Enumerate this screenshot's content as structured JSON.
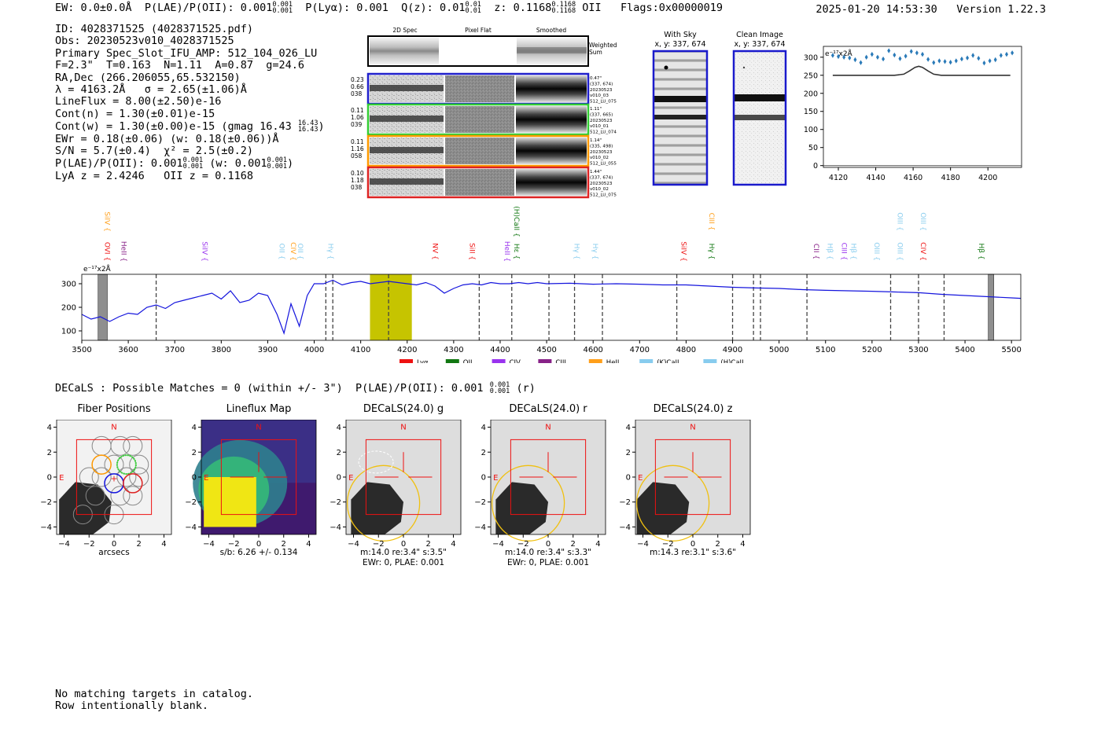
{
  "header": {
    "ew": "EW: 0.0±0.0Å",
    "plae_label": "P(LAE)/P(OII): 0.001",
    "plae_hi": "0.001",
    "plae_lo": "0.001",
    "plya": "P(Lyα): 0.001",
    "qz_label": "Q(z): 0.01",
    "qz_hi": "0.01",
    "qz_lo": "0.01",
    "z_label": "z: 0.1168",
    "z_hi": "0.1168",
    "z_lo": "0.1168",
    "z_line": "OII",
    "flags": "Flags:0x00000019",
    "timestamp": "2025-01-20 14:53:30",
    "version": "Version 1.22.3"
  },
  "info": {
    "id": "ID: 4028371525 (4028371525.pdf)",
    "obs": "Obs: 20230523v010_4028371525",
    "primary": "Primary Spec_Slot_IFU_AMP: 512_104_026_LU",
    "fit": "F=2.3\"  T=0.163  N=1.11  A=0.87  g=24.6",
    "radec": "RA,Dec (266.206055,65.532150)",
    "lambda": "λ = 4163.2Å   σ = 2.65(±1.06)Å",
    "lineflux": "LineFlux = 8.00(±2.50)e-16",
    "cont_n": "Cont(n) = 1.30(±0.01)e-15",
    "cont_w": "Cont(w) = 1.30(±0.00)e-15 (gmag 16.43",
    "cont_w_hi": "16.43",
    "cont_w_lo": "16.43",
    "ewr": "EWr = 0.18(±0.06) (w: 0.18(±0.06))Å",
    "sn": "S/N = 5.7(±0.4)  χ² = 2.5(±0.2)",
    "plae": "P(LAE)/P(OII): 0.001",
    "plae_hi": "0.001",
    "plae_lo": "0.001",
    "plae_w": "(w: 0.001",
    "plae_w_hi": "0.001",
    "plae_w_lo": "0.001",
    "lya_z": "LyA z = 2.4246   OII z = 0.1168"
  },
  "cutouts": {
    "col_2d": "2D Spec",
    "col_flat": "Pixel Flat",
    "col_smooth": "Smoothed",
    "weighted": "Weighted",
    "weighted2": "Sum",
    "rows": [
      {
        "left": [
          "0.23",
          "0.66",
          "038"
        ],
        "right": [
          "0.47\"",
          "(337, 674)",
          "20230523",
          "v010_03",
          "512_LU_075"
        ],
        "color": "#1f1fcc"
      },
      {
        "left": [
          "0.11",
          "1.06",
          "039"
        ],
        "right": [
          "1.11\"",
          "(337, 665)",
          "20230523",
          "v010_01",
          "512_LU_074"
        ],
        "color": "#33cc33"
      },
      {
        "left": [
          "0.11",
          "1.16",
          "058"
        ],
        "right": [
          "1.14\"",
          "(335, 498)",
          "20230523",
          "v010_02",
          "512_LU_055"
        ],
        "color": "#ff9900"
      },
      {
        "left": [
          "0.10",
          "1.18",
          "038"
        ],
        "right": [
          "1.44\"",
          "(337, 674)",
          "20230523",
          "v010_02",
          "512_LU_075"
        ],
        "color": "#dd2222"
      }
    ]
  },
  "sky": {
    "with_sky_title": "With Sky",
    "with_sky_xy": "x, y: 337, 674",
    "clean_title": "Clean Image",
    "clean_xy": "x, y: 337, 674"
  },
  "zoom_chart": {
    "ylabel": "e⁻¹⁷x2Å",
    "xticks": [
      "4120",
      "4140",
      "4160",
      "4180",
      "4200"
    ],
    "yticks": [
      "0",
      "50",
      "100",
      "150",
      "200",
      "250",
      "300"
    ]
  },
  "spectrum": {
    "ylabel": "e⁻¹⁷x2Å",
    "xticks": [
      "3500",
      "3600",
      "3700",
      "3800",
      "3900",
      "4000",
      "4100",
      "4200",
      "4300",
      "4400",
      "4500",
      "4600",
      "4700",
      "4800",
      "4900",
      "5000",
      "5100",
      "5200",
      "5300",
      "5400",
      "5500"
    ],
    "yticks": [
      "100",
      "200",
      "300"
    ],
    "legend": [
      {
        "label": "Lyα",
        "color": "#ee1111"
      },
      {
        "label": "OII",
        "color": "#117711"
      },
      {
        "label": "CIV",
        "color": "#9933ee"
      },
      {
        "label": "CIII",
        "color": "#882288"
      },
      {
        "label": "HeII",
        "color": "#ff9f1a"
      },
      {
        "label": "(K)CaII",
        "color": "#88ccee"
      },
      {
        "label": "(H)CaII",
        "color": "#88ccee"
      }
    ],
    "lines": [
      {
        "label": "SiIV",
        "x": 3545,
        "color": "#ff9f1a",
        "row": 0
      },
      {
        "label": "OVI",
        "x": 3545,
        "color": "#ee1111",
        "row": 1
      },
      {
        "label": "HeII",
        "x": 3580,
        "color": "#882288",
        "row": 1
      },
      {
        "label": "SiIV",
        "x": 3755,
        "color": "#9933ee",
        "row": 1
      },
      {
        "label": "OII",
        "x": 3920,
        "color": "#88ccee",
        "row": 1
      },
      {
        "label": "CIV",
        "x": 3945,
        "color": "#ff9f1a",
        "row": 1
      },
      {
        "label": "OII",
        "x": 3960,
        "color": "#88ccee",
        "row": 1
      },
      {
        "label": "Hγ",
        "x": 4025,
        "color": "#88ccee",
        "row": 1
      },
      {
        "label": "NV",
        "x": 4250,
        "color": "#ee1111",
        "row": 1
      },
      {
        "label": "SiII",
        "x": 4330,
        "color": "#ee1111",
        "row": 1
      },
      {
        "label": "HeII",
        "x": 4405,
        "color": "#9933ee",
        "row": 1
      },
      {
        "label": "(H)CaII",
        "x": 4425,
        "color": "#117711",
        "row": 0
      },
      {
        "label": "Hε",
        "x": 4425,
        "color": "#117711",
        "row": 1
      },
      {
        "label": "Hγ",
        "x": 4555,
        "color": "#88ccee",
        "row": 1
      },
      {
        "label": "Hγ",
        "x": 4595,
        "color": "#88ccee",
        "row": 1
      },
      {
        "label": "SiIV",
        "x": 4785,
        "color": "#ee1111",
        "row": 1
      },
      {
        "label": "CIII",
        "x": 4845,
        "color": "#ff9f1a",
        "row": 0
      },
      {
        "label": "Hγ",
        "x": 4845,
        "color": "#117711",
        "row": 1
      },
      {
        "label": "CII",
        "x": 5070,
        "color": "#882288",
        "row": 1
      },
      {
        "label": "Hβ",
        "x": 5100,
        "color": "#88ccee",
        "row": 1
      },
      {
        "label": "CIII",
        "x": 5130,
        "color": "#9933ee",
        "row": 1
      },
      {
        "label": "Hβ",
        "x": 5150,
        "color": "#88ccee",
        "row": 1
      },
      {
        "label": "OIII",
        "x": 5200,
        "color": "#88ccee",
        "row": 1
      },
      {
        "label": "OIII",
        "x": 5250,
        "color": "#88ccee",
        "row": 0
      },
      {
        "label": "OIII",
        "x": 5250,
        "color": "#88ccee",
        "row": 1
      },
      {
        "label": "CIV",
        "x": 5300,
        "color": "#ee1111",
        "row": 1
      },
      {
        "label": "OIII",
        "x": 5300,
        "color": "#88ccee",
        "row": 0
      },
      {
        "label": "Hβ",
        "x": 5425,
        "color": "#117711",
        "row": 1
      }
    ]
  },
  "decals_line": {
    "text": "DECaLS : Possible Matches = 0 (within +/- 3\")  P(LAE)/P(OII): 0.001",
    "hi": "0.001",
    "lo": "0.001",
    "band": "(r)"
  },
  "panels": [
    {
      "title": "Fiber Positions",
      "cap1": "arcsecs",
      "cap2": ""
    },
    {
      "title": "Lineflux Map",
      "cap1": "s/b: 6.26 +/- 0.134",
      "cap2": ""
    },
    {
      "title": "DECaLS(24.0) g",
      "cap1": "m:14.0  re:3.4\"  s:3.5\"",
      "cap2": "EWr: 0, PLAE: 0.001"
    },
    {
      "title": "DECaLS(24.0) r",
      "cap1": "m:14.0  re:3.4\"  s:3.3\"",
      "cap2": "EWr: 0, PLAE: 0.001"
    },
    {
      "title": "DECaLS(24.0) z",
      "cap1": "m:14.3  re:3.1\"  s:3.6\"",
      "cap2": ""
    }
  ],
  "panel_axis": {
    "ticks": [
      "−4",
      "−2",
      "0",
      "2",
      "4"
    ],
    "n_label": "N",
    "e_label": "E"
  },
  "footer": {
    "line1": "No matching targets in catalog.",
    "line2": "Row intentionally blank."
  },
  "chart_data": [
    {
      "type": "line",
      "title": "",
      "xlabel": "",
      "ylabel": "e⁻¹⁷x2Å",
      "xlim": [
        3500,
        5520
      ],
      "ylim": [
        60,
        340
      ],
      "x": [
        3500,
        3520,
        3540,
        3560,
        3580,
        3600,
        3620,
        3640,
        3660,
        3680,
        3700,
        3720,
        3740,
        3760,
        3780,
        3800,
        3820,
        3840,
        3860,
        3880,
        3900,
        3920,
        3935,
        3950,
        3968,
        3985,
        4000,
        4020,
        4040,
        4060,
        4080,
        4100,
        4120,
        4140,
        4160,
        4180,
        4200,
        4220,
        4240,
        4260,
        4280,
        4300,
        4320,
        4340,
        4360,
        4380,
        4400,
        4420,
        4440,
        4460,
        4480,
        4500,
        4550,
        4600,
        4650,
        4700,
        4750,
        4800,
        4850,
        4900,
        4950,
        5000,
        5050,
        5100,
        5150,
        5200,
        5250,
        5300,
        5350,
        5400,
        5450,
        5500,
        5520
      ],
      "y": [
        170,
        150,
        160,
        140,
        160,
        175,
        170,
        200,
        210,
        195,
        220,
        230,
        240,
        250,
        260,
        235,
        270,
        220,
        230,
        260,
        250,
        170,
        90,
        215,
        120,
        250,
        300,
        300,
        315,
        295,
        305,
        310,
        300,
        305,
        310,
        305,
        300,
        295,
        305,
        290,
        260,
        280,
        295,
        300,
        295,
        305,
        300,
        300,
        305,
        300,
        305,
        300,
        302,
        298,
        300,
        298,
        295,
        295,
        290,
        285,
        282,
        280,
        275,
        272,
        270,
        268,
        265,
        262,
        255,
        250,
        245,
        240,
        238
      ],
      "line_markers": [
        3660,
        4025,
        4040,
        4160,
        4355,
        4425,
        4505,
        4560,
        4620,
        4780,
        4900,
        4945,
        4960,
        5060,
        5240,
        5300,
        5355
      ],
      "shaded_regions": [
        [
          3535,
          3555
        ],
        [
          4120,
          4210
        ],
        [
          5450,
          5462
        ]
      ]
    },
    {
      "type": "line",
      "title": "",
      "ylabel": "e⁻¹⁷x2Å",
      "xlim": [
        4112,
        4218
      ],
      "ylim": [
        -5,
        330
      ],
      "series": [
        {
          "name": "data",
          "x": [
            4117,
            4120,
            4123,
            4126,
            4129,
            4132,
            4135,
            4138,
            4141,
            4144,
            4147,
            4150,
            4153,
            4156,
            4159,
            4162,
            4165,
            4168,
            4171,
            4174,
            4177,
            4180,
            4183,
            4186,
            4189,
            4192,
            4195,
            4198,
            4201,
            4204,
            4207,
            4210,
            4213
          ],
          "values": [
            305,
            302,
            300,
            298,
            293,
            285,
            300,
            308,
            300,
            295,
            318,
            306,
            296,
            303,
            316,
            312,
            308,
            294,
            285,
            290,
            288,
            286,
            290,
            295,
            298,
            305,
            297,
            284,
            290,
            293,
            305,
            308,
            312
          ]
        },
        {
          "name": "fit",
          "x": [
            4117,
            4150,
            4155,
            4158,
            4161,
            4163,
            4165,
            4168,
            4171,
            4175,
            4212
          ],
          "values": [
            250,
            250,
            253,
            262,
            272,
            275,
            272,
            262,
            253,
            250,
            250
          ]
        }
      ]
    }
  ]
}
